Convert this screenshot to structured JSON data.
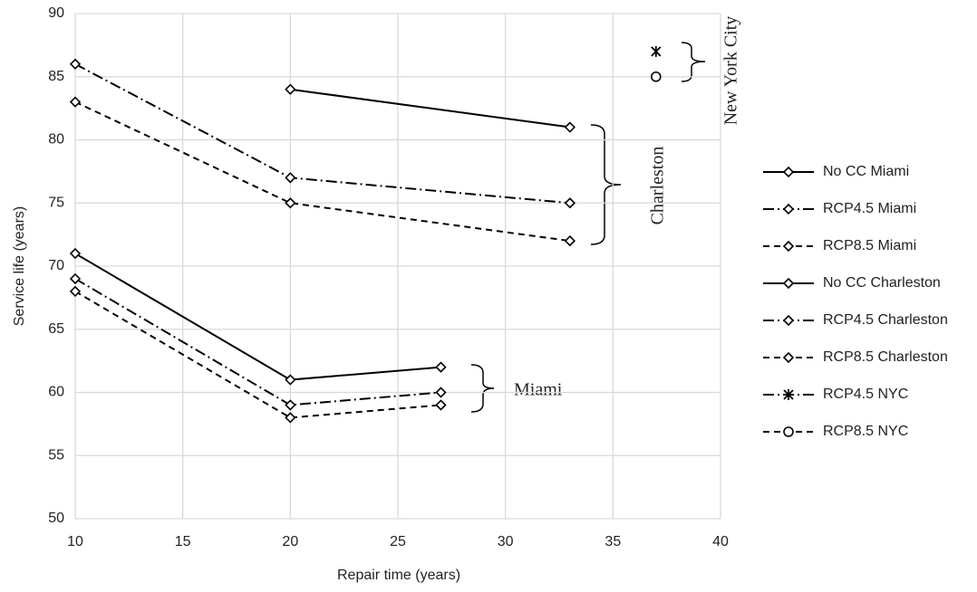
{
  "chart_data": {
    "type": "line",
    "x_label": "Repair time (years)",
    "y_label": "Service life (years)",
    "xlim": [
      10,
      40
    ],
    "xticks": [
      10,
      15,
      20,
      25,
      30,
      35,
      40
    ],
    "ylim": [
      50,
      90
    ],
    "yticks": [
      50,
      55,
      60,
      65,
      70,
      75,
      80,
      85,
      90
    ],
    "grid": true,
    "legend": "right",
    "annotations": [
      "Miami",
      "Charleston",
      "New York City"
    ],
    "series": [
      {
        "name": "No CC Miami",
        "color": "#000000",
        "dash": "solid",
        "marker": "diamond",
        "x": [
          10,
          20,
          27
        ],
        "values": [
          71,
          61,
          62
        ]
      },
      {
        "name": "RCP4.5 Miami",
        "color": "#000000",
        "dash": "dashdot",
        "marker": "diamond",
        "x": [
          10,
          20,
          27
        ],
        "values": [
          69,
          59,
          60
        ]
      },
      {
        "name": "RCP8.5 Miami",
        "color": "#000000",
        "dash": "dash",
        "marker": "diamond",
        "x": [
          10,
          20,
          27
        ],
        "values": [
          68,
          58,
          59
        ]
      },
      {
        "name": "No CC Charleston",
        "color": "#000000",
        "dash": "solid",
        "marker": "diamond",
        "x": [
          20,
          33
        ],
        "values": [
          84,
          81
        ]
      },
      {
        "name": "RCP4.5 Charleston",
        "color": "#000000",
        "dash": "dashdot",
        "marker": "diamond",
        "x": [
          10,
          20,
          33
        ],
        "values": [
          86,
          77,
          75
        ]
      },
      {
        "name": "RCP8.5 Charleston",
        "color": "#000000",
        "dash": "dash",
        "marker": "diamond",
        "x": [
          10,
          20,
          33
        ],
        "values": [
          83,
          75,
          72
        ]
      },
      {
        "name": "RCP4.5 NYC",
        "color": "#000000",
        "dash": "dashdot",
        "marker": "asterisk",
        "x": [
          37
        ],
        "values": [
          87
        ]
      },
      {
        "name": "RCP8.5 NYC",
        "color": "#000000",
        "dash": "dash",
        "marker": "circle",
        "x": [
          37
        ],
        "values": [
          85
        ]
      }
    ]
  }
}
